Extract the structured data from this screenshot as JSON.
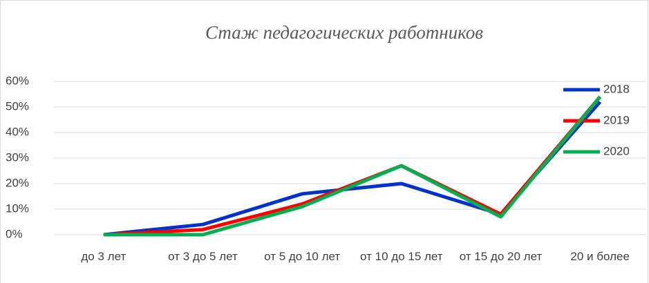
{
  "chart_data": {
    "type": "line",
    "title": "Стаж педагогических работников",
    "categories": [
      "до 3 лет",
      "от 3 до 5 лет",
      "от 5 до 10 лет",
      "от 10 до 15 лет",
      "от 15 до 20 лет",
      "20 и более"
    ],
    "series": [
      {
        "name": "2018",
        "color": "#0033cc",
        "values": [
          0,
          4,
          16,
          20,
          8,
          52
        ]
      },
      {
        "name": "2019",
        "color": "#ff0000",
        "values": [
          0,
          2,
          12,
          27,
          8,
          54
        ]
      },
      {
        "name": "2020",
        "color": "#00b050",
        "values": [
          0,
          0,
          11,
          27,
          7,
          54
        ]
      }
    ],
    "ylim": [
      0,
      60
    ],
    "yticks": [
      {
        "value": 0,
        "label": "0%"
      },
      {
        "value": 10,
        "label": "10%"
      },
      {
        "value": 20,
        "label": "20%"
      },
      {
        "value": 30,
        "label": "30%"
      },
      {
        "value": 40,
        "label": "40%"
      },
      {
        "value": 50,
        "label": "50%"
      },
      {
        "value": 60,
        "label": "60%"
      }
    ],
    "grid": true,
    "legend": "right"
  }
}
